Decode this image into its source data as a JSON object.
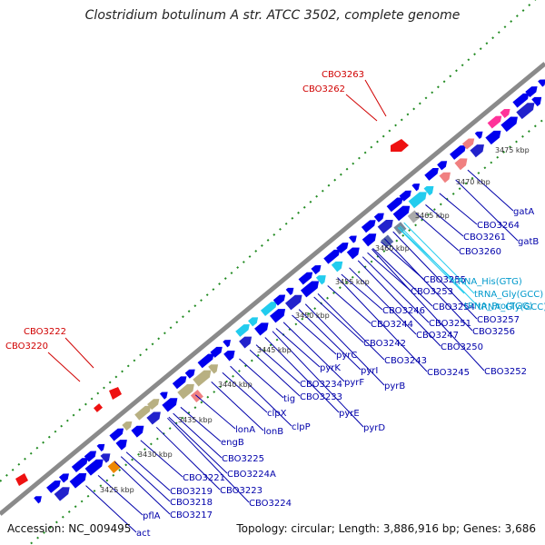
{
  "title": "Clostridium botulinum A str. ATCC 3502, complete genome",
  "footer": {
    "accession": "Accession: NC_009495",
    "info": "Topology: circular; Length: 3,886,916 bp; Genes: 3,686"
  },
  "colors": {
    "backbone": "#8a8a8a",
    "forward_gene": "#0000ee",
    "trna": "#22ccee",
    "label_blue": "#0000aa",
    "label_cyan": "#0099cc",
    "label_red": "#d00000",
    "ticks": "#228b22"
  },
  "kbp_ticks": [
    "3425 kbp",
    "3430 kbp",
    "3435 kbp",
    "3440 kbp",
    "3445 kbp",
    "3450 kbp",
    "3455 kbp",
    "3460 kbp",
    "3465 kbp",
    "3470 kbp",
    "3475 kbp"
  ],
  "red_labels": [
    "CBO3263",
    "CBO3262",
    "CBO3222",
    "CBO3220"
  ],
  "gene_labels": [
    "gatA",
    "CBO3264",
    "gatB",
    "CBO3261",
    "CBO3260",
    "CBO3255",
    "CBO3253",
    "CBO3254",
    "CBO3257",
    "CBO3256",
    "CBO3246",
    "CBO3251",
    "CBO3244",
    "CBO3247",
    "CBO3242",
    "CBO3250",
    "CBO3243",
    "CBO3245",
    "CBO3252",
    "pyrC",
    "pyrK",
    "pyrI",
    "pyrF",
    "pyrB",
    "CBO3234",
    "CBO3233",
    "pyrE",
    "pyrD",
    "tig",
    "clpX",
    "clpP",
    "lonB",
    "lonA",
    "engB",
    "CBO3225",
    "CBO3224A",
    "CBO3221",
    "CBO3223",
    "CBO3224",
    "CBO3219",
    "CBO3218",
    "CBO3217",
    "pflA",
    "act"
  ],
  "trna_labels": [
    "tRNA_His(GTG)",
    "tRNA_Gly(GCC)",
    "tRNA_Pro(TGG)",
    "tRNA_Gly(GCC)"
  ]
}
